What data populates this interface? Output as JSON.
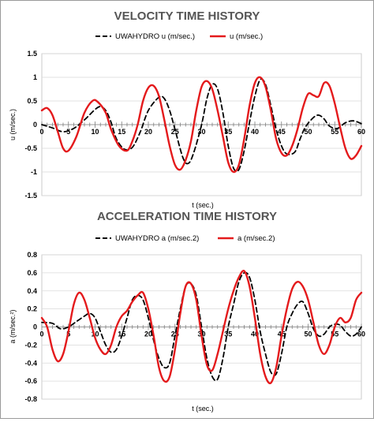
{
  "chart_data": [
    {
      "type": "line",
      "title": "VELOCITY TIME HISTORY",
      "xlabel": "t (sec.)",
      "ylabel": "u (m/sec.)",
      "xlim": [
        0,
        60
      ],
      "ylim": [
        -1.5,
        1.5
      ],
      "x_ticks": [
        "0",
        "5",
        "10",
        "15",
        "20",
        "25",
        "30",
        "35",
        "40",
        "45",
        "50",
        "55",
        "60"
      ],
      "y_ticks": [
        "1.5",
        "1",
        "0.5",
        "0",
        "-0.5",
        "-1",
        "-1.5"
      ],
      "legend_position": "top",
      "grid": true,
      "series": [
        {
          "name": "UWAHYDRO u (m/sec.)",
          "color": "#000000",
          "dash": "dashed",
          "points": [
            [
              0,
              0.0
            ],
            [
              2,
              -0.07
            ],
            [
              4,
              -0.15
            ],
            [
              6,
              -0.08
            ],
            [
              8,
              0.1
            ],
            [
              10,
              0.32
            ],
            [
              11,
              0.38
            ],
            [
              12,
              0.3
            ],
            [
              13,
              0.05
            ],
            [
              14,
              -0.3
            ],
            [
              15.5,
              -0.52
            ],
            [
              17,
              -0.48
            ],
            [
              18.5,
              -0.15
            ],
            [
              20,
              0.3
            ],
            [
              22,
              0.58
            ],
            [
              23,
              0.55
            ],
            [
              24,
              0.3
            ],
            [
              25,
              -0.1
            ],
            [
              26.5,
              -0.7
            ],
            [
              27.5,
              -0.82
            ],
            [
              28.5,
              -0.6
            ],
            [
              30,
              0.0
            ],
            [
              31,
              0.55
            ],
            [
              32,
              0.85
            ],
            [
              33,
              0.75
            ],
            [
              34,
              0.25
            ],
            [
              35,
              -0.45
            ],
            [
              36,
              -0.92
            ],
            [
              37,
              -0.95
            ],
            [
              38,
              -0.55
            ],
            [
              39,
              0.05
            ],
            [
              40,
              0.6
            ],
            [
              41,
              0.95
            ],
            [
              42,
              0.85
            ],
            [
              43,
              0.4
            ],
            [
              44,
              -0.1
            ],
            [
              45,
              -0.45
            ],
            [
              46,
              -0.62
            ],
            [
              47.5,
              -0.58
            ],
            [
              48.5,
              -0.3
            ],
            [
              49.5,
              -0.05
            ],
            [
              51,
              0.15
            ],
            [
              52,
              0.2
            ],
            [
              53,
              0.12
            ],
            [
              54,
              -0.03
            ],
            [
              55.5,
              -0.08
            ],
            [
              57,
              0.04
            ],
            [
              58.5,
              0.08
            ],
            [
              60,
              0.02
            ]
          ]
        },
        {
          "name": "u (m/sec.)",
          "color": "#e41a1c",
          "dash": "solid",
          "points": [
            [
              0,
              0.3
            ],
            [
              1,
              0.35
            ],
            [
              2,
              0.2
            ],
            [
              3,
              -0.15
            ],
            [
              4,
              -0.5
            ],
            [
              5,
              -0.55
            ],
            [
              6.5,
              -0.25
            ],
            [
              8,
              0.25
            ],
            [
              9.5,
              0.5
            ],
            [
              10.5,
              0.48
            ],
            [
              12,
              0.25
            ],
            [
              13,
              -0.1
            ],
            [
              14.5,
              -0.45
            ],
            [
              16,
              -0.55
            ],
            [
              17,
              -0.35
            ],
            [
              18,
              0.0
            ],
            [
              19,
              0.5
            ],
            [
              20,
              0.78
            ],
            [
              21,
              0.82
            ],
            [
              22,
              0.6
            ],
            [
              23,
              0.1
            ],
            [
              24,
              -0.45
            ],
            [
              25,
              -0.85
            ],
            [
              26,
              -0.95
            ],
            [
              27,
              -0.75
            ],
            [
              28,
              -0.35
            ],
            [
              29,
              0.3
            ],
            [
              30,
              0.8
            ],
            [
              31,
              0.92
            ],
            [
              32,
              0.75
            ],
            [
              33,
              0.3
            ],
            [
              34,
              -0.25
            ],
            [
              35,
              -0.8
            ],
            [
              36,
              -1.0
            ],
            [
              37,
              -0.85
            ],
            [
              38,
              -0.3
            ],
            [
              39,
              0.4
            ],
            [
              40,
              0.88
            ],
            [
              41,
              1.0
            ],
            [
              42,
              0.8
            ],
            [
              43,
              0.3
            ],
            [
              44,
              -0.3
            ],
            [
              45,
              -0.6
            ],
            [
              46,
              -0.65
            ],
            [
              47,
              -0.45
            ],
            [
              48,
              -0.1
            ],
            [
              49,
              0.35
            ],
            [
              50,
              0.65
            ],
            [
              51,
              0.62
            ],
            [
              52,
              0.6
            ],
            [
              53,
              0.88
            ],
            [
              54,
              0.82
            ],
            [
              55,
              0.45
            ],
            [
              56,
              -0.05
            ],
            [
              57,
              -0.5
            ],
            [
              58,
              -0.72
            ],
            [
              59,
              -0.65
            ],
            [
              60,
              -0.45
            ]
          ]
        }
      ]
    },
    {
      "type": "line",
      "title": "ACCELERATION TIME HISTORY",
      "xlabel": "t (sec.)",
      "ylabel": "a (m/sec.²)",
      "xlim": [
        0,
        60
      ],
      "ylim": [
        -0.8,
        0.8
      ],
      "x_ticks": [
        "0",
        "5",
        "10",
        "15",
        "20",
        "25",
        "30",
        "35",
        "40",
        "45",
        "50",
        "55",
        "60"
      ],
      "y_ticks": [
        "0.8",
        "0.6",
        "0.4",
        "0.2",
        "0",
        "-0.2",
        "-0.4",
        "-0.6",
        "-0.8"
      ],
      "legend_position": "top",
      "grid": true,
      "series": [
        {
          "name": "UWAHYDRO a (m/sec.2)",
          "color": "#000000",
          "dash": "dashed",
          "points": [
            [
              0,
              0.05
            ],
            [
              2,
              0.04
            ],
            [
              3.5,
              -0.02
            ],
            [
              5,
              0.0
            ],
            [
              6.5,
              0.06
            ],
            [
              8,
              0.12
            ],
            [
              9,
              0.15
            ],
            [
              10,
              0.1
            ],
            [
              11,
              -0.05
            ],
            [
              12,
              -0.2
            ],
            [
              13,
              -0.28
            ],
            [
              14,
              -0.25
            ],
            [
              15,
              -0.1
            ],
            [
              16,
              0.1
            ],
            [
              17,
              0.3
            ],
            [
              18,
              0.35
            ],
            [
              19,
              0.3
            ],
            [
              20,
              0.1
            ],
            [
              21,
              -0.15
            ],
            [
              22,
              -0.35
            ],
            [
              23,
              -0.45
            ],
            [
              24,
              -0.4
            ],
            [
              25,
              -0.1
            ],
            [
              26,
              0.2
            ],
            [
              27,
              0.45
            ],
            [
              28,
              0.48
            ],
            [
              29,
              0.35
            ],
            [
              30,
              0.0
            ],
            [
              31,
              -0.35
            ],
            [
              32,
              -0.55
            ],
            [
              33,
              -0.58
            ],
            [
              34,
              -0.35
            ],
            [
              35,
              0.0
            ],
            [
              36,
              0.25
            ],
            [
              37,
              0.5
            ],
            [
              38,
              0.6
            ],
            [
              39,
              0.55
            ],
            [
              40,
              0.3
            ],
            [
              41,
              -0.05
            ],
            [
              42,
              -0.3
            ],
            [
              43,
              -0.5
            ],
            [
              44,
              -0.52
            ],
            [
              45,
              -0.3
            ],
            [
              46,
              0.0
            ],
            [
              47,
              0.15
            ],
            [
              48,
              0.25
            ],
            [
              49,
              0.28
            ],
            [
              50,
              0.15
            ],
            [
              51,
              -0.02
            ],
            [
              52,
              -0.1
            ],
            [
              53,
              -0.08
            ],
            [
              54,
              0.0
            ],
            [
              55,
              0.03
            ],
            [
              56,
              0.02
            ],
            [
              57,
              -0.05
            ],
            [
              58,
              -0.1
            ],
            [
              59,
              -0.08
            ],
            [
              60,
              0.0
            ]
          ]
        },
        {
          "name": "a (m/sec.2)",
          "color": "#e41a1c",
          "dash": "solid",
          "points": [
            [
              0,
              0.1
            ],
            [
              1,
              0.0
            ],
            [
              2,
              -0.25
            ],
            [
              3,
              -0.38
            ],
            [
              4,
              -0.3
            ],
            [
              5,
              -0.05
            ],
            [
              6,
              0.25
            ],
            [
              7,
              0.38
            ],
            [
              8,
              0.3
            ],
            [
              9,
              0.1
            ],
            [
              10,
              -0.12
            ],
            [
              11,
              -0.25
            ],
            [
              12,
              -0.3
            ],
            [
              13,
              -0.2
            ],
            [
              14,
              0.0
            ],
            [
              15,
              0.12
            ],
            [
              16,
              0.18
            ],
            [
              17,
              0.28
            ],
            [
              18,
              0.35
            ],
            [
              19,
              0.38
            ],
            [
              20,
              0.2
            ],
            [
              21,
              -0.1
            ],
            [
              22,
              -0.45
            ],
            [
              23,
              -0.6
            ],
            [
              24,
              -0.55
            ],
            [
              25,
              -0.25
            ],
            [
              26,
              0.15
            ],
            [
              27,
              0.45
            ],
            [
              28,
              0.48
            ],
            [
              29,
              0.3
            ],
            [
              30,
              -0.1
            ],
            [
              31,
              -0.42
            ],
            [
              32,
              -0.48
            ],
            [
              33,
              -0.3
            ],
            [
              34,
              -0.05
            ],
            [
              35,
              0.2
            ],
            [
              36,
              0.4
            ],
            [
              37,
              0.55
            ],
            [
              38,
              0.62
            ],
            [
              39,
              0.45
            ],
            [
              40,
              0.1
            ],
            [
              41,
              -0.3
            ],
            [
              42,
              -0.55
            ],
            [
              43,
              -0.62
            ],
            [
              44,
              -0.45
            ],
            [
              45,
              -0.1
            ],
            [
              46,
              0.2
            ],
            [
              47,
              0.42
            ],
            [
              48,
              0.5
            ],
            [
              49,
              0.45
            ],
            [
              50,
              0.3
            ],
            [
              51,
              0.05
            ],
            [
              52,
              -0.2
            ],
            [
              53,
              -0.3
            ],
            [
              54,
              -0.2
            ],
            [
              55,
              0.0
            ],
            [
              56,
              0.1
            ],
            [
              57,
              0.05
            ],
            [
              58,
              0.1
            ],
            [
              59,
              0.3
            ],
            [
              60,
              0.38
            ]
          ]
        }
      ]
    }
  ]
}
